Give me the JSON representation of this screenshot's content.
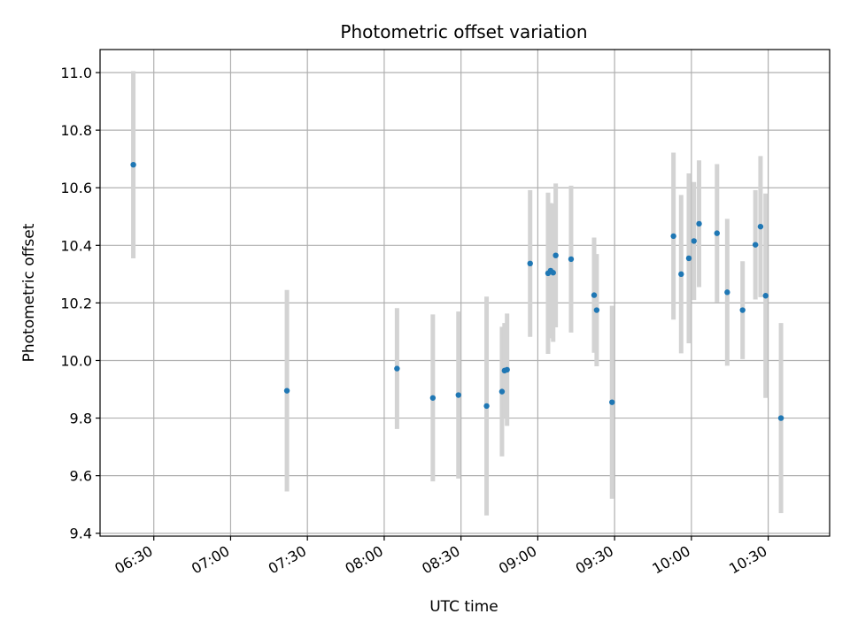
{
  "chart_data": {
    "type": "scatter",
    "title": "Photometric offset variation",
    "xlabel": "UTC time",
    "ylabel": "Photometric offset",
    "x_tick_labels": [
      "06:30",
      "07:00",
      "07:30",
      "08:00",
      "08:30",
      "09:00",
      "09:30",
      "10:00",
      "10:30"
    ],
    "x_tick_values": [
      "06:30",
      "07:00",
      "07:30",
      "08:00",
      "08:30",
      "09:00",
      "09:30",
      "10:00",
      "10:30"
    ],
    "xlim": [
      "06:09",
      "10:54"
    ],
    "y_tick_labels": [
      "9.4",
      "9.6",
      "9.8",
      "10.0",
      "10.2",
      "10.4",
      "10.6",
      "10.8",
      "11.0"
    ],
    "y_tick_values": [
      9.4,
      9.6,
      9.8,
      10.0,
      10.2,
      10.4,
      10.6,
      10.8,
      11.0
    ],
    "ylim": [
      9.39,
      11.08
    ],
    "grid": true,
    "colors": {
      "point": "#1f77b4",
      "errorbar": "#d3d3d3",
      "grid": "#b0b0b0"
    },
    "points": [
      {
        "x": "06:22",
        "y": 10.68,
        "err": 0.325
      },
      {
        "x": "07:22",
        "y": 9.895,
        "err": 0.35
      },
      {
        "x": "08:05",
        "y": 9.972,
        "err": 0.21
      },
      {
        "x": "08:19",
        "y": 9.87,
        "err": 0.29
      },
      {
        "x": "08:29",
        "y": 9.88,
        "err": 0.29
      },
      {
        "x": "08:40",
        "y": 9.842,
        "err": 0.38
      },
      {
        "x": "08:46",
        "y": 9.892,
        "err": 0.225
      },
      {
        "x": "08:47",
        "y": 9.965,
        "err": 0.165
      },
      {
        "x": "08:48",
        "y": 9.968,
        "err": 0.195
      },
      {
        "x": "08:57",
        "y": 10.337,
        "err": 0.255
      },
      {
        "x": "09:04",
        "y": 10.303,
        "err": 0.28
      },
      {
        "x": "09:05",
        "y": 10.312,
        "err": 0.235
      },
      {
        "x": "09:06",
        "y": 10.305,
        "err": 0.24
      },
      {
        "x": "09:07",
        "y": 10.365,
        "err": 0.25
      },
      {
        "x": "09:13",
        "y": 10.352,
        "err": 0.255
      },
      {
        "x": "09:22",
        "y": 10.227,
        "err": 0.2
      },
      {
        "x": "09:23",
        "y": 10.175,
        "err": 0.195
      },
      {
        "x": "09:29",
        "y": 9.855,
        "err": 0.335
      },
      {
        "x": "09:53",
        "y": 10.432,
        "err": 0.29
      },
      {
        "x": "09:56",
        "y": 10.3,
        "err": 0.275
      },
      {
        "x": "09:59",
        "y": 10.355,
        "err": 0.295
      },
      {
        "x": "10:01",
        "y": 10.415,
        "err": 0.205
      },
      {
        "x": "10:03",
        "y": 10.475,
        "err": 0.22
      },
      {
        "x": "10:10",
        "y": 10.442,
        "err": 0.24
      },
      {
        "x": "10:14",
        "y": 10.237,
        "err": 0.255
      },
      {
        "x": "10:20",
        "y": 10.175,
        "err": 0.17
      },
      {
        "x": "10:25",
        "y": 10.402,
        "err": 0.19
      },
      {
        "x": "10:27",
        "y": 10.465,
        "err": 0.245
      },
      {
        "x": "10:29",
        "y": 10.225,
        "err": 0.355
      },
      {
        "x": "10:35",
        "y": 9.8,
        "err": 0.33
      }
    ]
  }
}
